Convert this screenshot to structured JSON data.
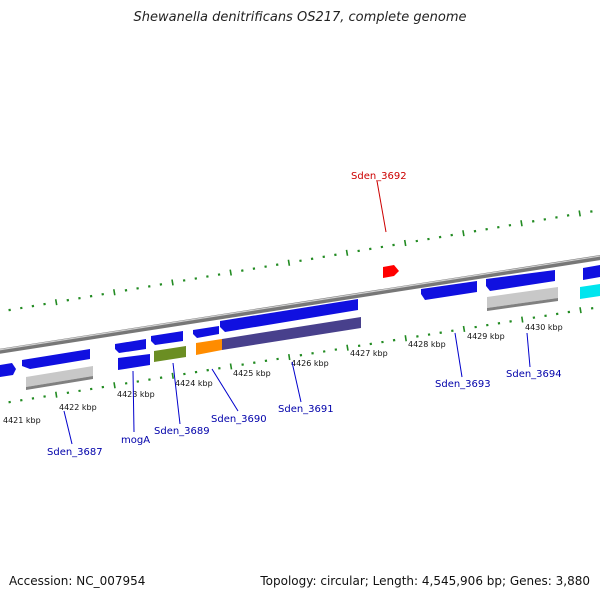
{
  "title": "Shewanella denitrificans OS217, complete genome",
  "footer": {
    "accession": "Accession: NC_007954",
    "summary": "Topology: circular; Length: 4,545,906 bp; Genes: 3,880"
  },
  "colors": {
    "forward_gene": "#1010e0",
    "gene_highlight": "#ff0000",
    "pseudo_gray": "#c0c0c0",
    "olive": "#6b8e23",
    "orange": "#ff8c00",
    "dark_purple": "#48408c",
    "cyan": "#00e5ee",
    "tick_green": "#228b22",
    "label_blue": "#0000aa",
    "label_red": "#cc0000"
  },
  "scale_labels": [
    "4421 kbp",
    "4422 kbp",
    "4423 kbp",
    "4424 kbp",
    "4425 kbp",
    "4426 kbp",
    "4427 kbp",
    "4428 kbp",
    "4429 kbp",
    "4430 kbp"
  ],
  "gene_labels": [
    {
      "id": "sden3687",
      "text": "Sden_3687",
      "color": "blue"
    },
    {
      "id": "moga",
      "text": "mogA",
      "color": "blue"
    },
    {
      "id": "sden3689",
      "text": "Sden_3689",
      "color": "blue"
    },
    {
      "id": "sden3690",
      "text": "Sden_3690",
      "color": "blue"
    },
    {
      "id": "sden3691",
      "text": "Sden_3691",
      "color": "blue"
    },
    {
      "id": "sden3692",
      "text": "Sden_3692",
      "color": "red"
    },
    {
      "id": "sden3693",
      "text": "Sden_3693",
      "color": "blue"
    },
    {
      "id": "sden3694",
      "text": "Sden_3694",
      "color": "blue"
    }
  ]
}
